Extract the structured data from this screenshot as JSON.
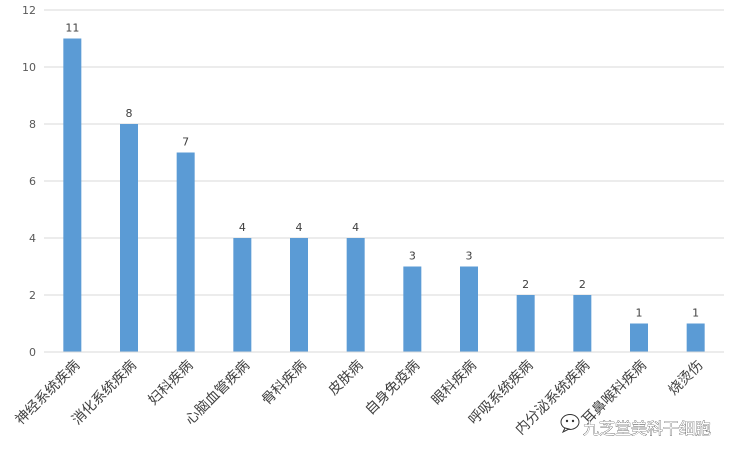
{
  "chart_data": {
    "type": "bar",
    "categories": [
      "神经系统疾病",
      "消化系统疾病",
      "妇科疾病",
      "心脑血管疾病",
      "骨科疾病",
      "皮肤病",
      "自身免疫病",
      "眼科疾病",
      "呼吸系统疾病",
      "内分泌系统疾病",
      "耳鼻喉科疾病",
      "烧烫伤"
    ],
    "values": [
      11,
      8,
      7,
      4,
      4,
      4,
      3,
      3,
      2,
      2,
      1,
      1
    ],
    "ylim": [
      0,
      12
    ],
    "yticks": [
      "0",
      "2",
      "4",
      "6",
      "8",
      "10",
      "12"
    ],
    "grid": true,
    "legend": "none",
    "colors": {
      "bar": "#5b9bd5",
      "grid": "#d9d9d9"
    }
  },
  "watermark": {
    "text": "九芝堂美科干细胞",
    "icon": "wechat-bubble-icon"
  }
}
